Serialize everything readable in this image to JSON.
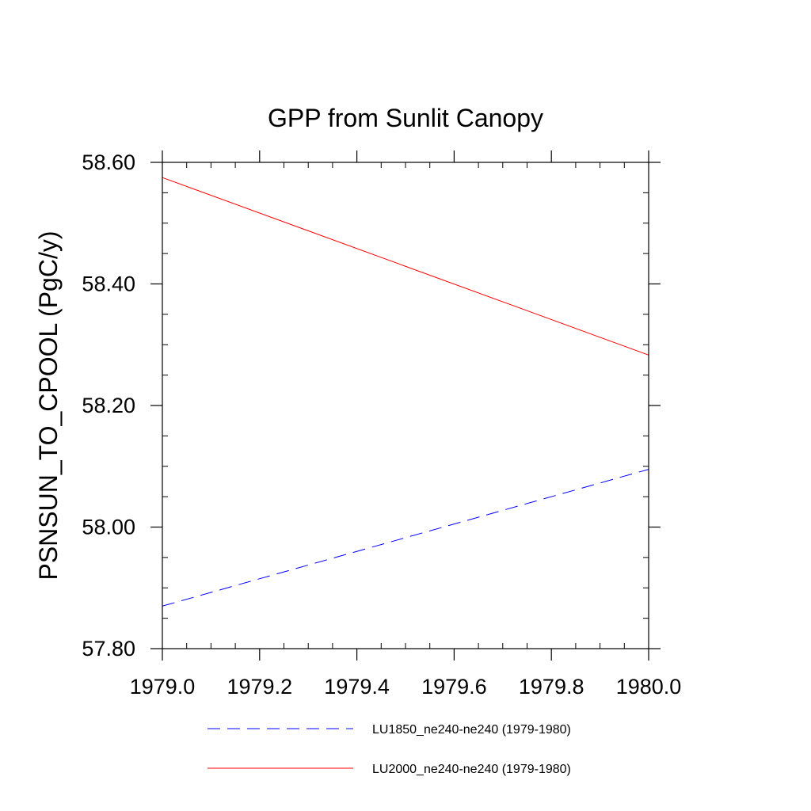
{
  "chart_data": {
    "type": "line",
    "title": "GPP from Sunlit Canopy",
    "xlabel": "",
    "ylabel": "PSNSUN_TO_CPOOL  (PgC/y)",
    "xlim": [
      1979.0,
      1980.0
    ],
    "ylim": [
      57.8,
      58.6
    ],
    "xticks": [
      "1979.0",
      "1979.2",
      "1979.4",
      "1979.6",
      "1979.8",
      "1980.0"
    ],
    "yticks": [
      "57.80",
      "58.00",
      "58.20",
      "58.40",
      "58.60"
    ],
    "grid": false,
    "legend_position": "bottom",
    "series": [
      {
        "name": "LU1850_ne240-ne240 (1979-1980)",
        "color": "#0000ff",
        "style": "dashed",
        "x": [
          1979.0,
          1980.0
        ],
        "y": [
          57.87,
          58.095
        ]
      },
      {
        "name": "LU2000_ne240-ne240 (1979-1980)",
        "color": "#ff0000",
        "style": "solid",
        "x": [
          1979.0,
          1980.0
        ],
        "y": [
          58.575,
          58.283
        ]
      }
    ]
  }
}
